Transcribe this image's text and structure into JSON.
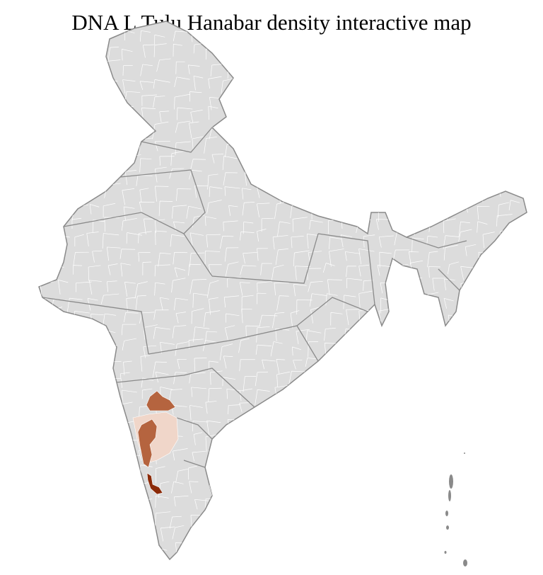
{
  "title": "DNA L Tulu Hanabar density interactive map",
  "colors": {
    "land": "#dcdcdc",
    "state_border": "#8a8a8a",
    "district_border": "#ffffff",
    "density_low": "#f0d6c9",
    "density_medium": "#b5643f",
    "density_high": "#8b2a08"
  }
}
